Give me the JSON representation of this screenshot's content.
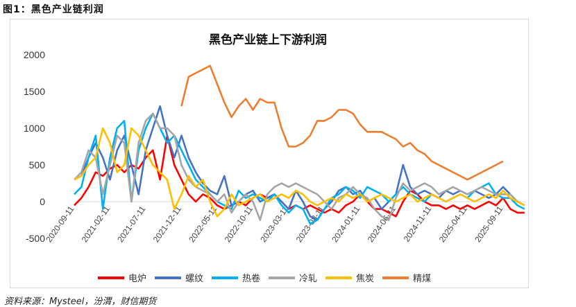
{
  "figure_title": "图1：黑色产业链利润",
  "source": "资料来源：Mysteel，汾渭，财信期货",
  "chart_data": {
    "type": "line",
    "title": "黑色产业链上下游利润",
    "xlabel": "",
    "ylabel": "",
    "ylim": [
      -500,
      2000
    ],
    "yticks": [
      2000,
      1500,
      1000,
      500,
      0,
      -500
    ],
    "x_tick_labels": [
      "2020-09-11",
      "2021-02-11",
      "2021-07-11",
      "2021-12-11",
      "2022-05-11",
      "2022-10-11",
      "2023-03-11",
      "2023-08-11",
      "2024-01-11",
      "2024-06-11",
      "2024-11-11",
      "2025-04-11",
      "2025-09-11"
    ],
    "x_unit": "months since 2020-09, monthly approximations",
    "legend_position": "bottom",
    "grid": false,
    "series": [
      {
        "name": "电炉",
        "color": "#ff0000",
        "values": [
          -50,
          50,
          200,
          400,
          350,
          450,
          500,
          400,
          500,
          450,
          600,
          700,
          300,
          900,
          500,
          300,
          100,
          0,
          100,
          50,
          -50,
          -100,
          -50,
          0,
          -50,
          50,
          100,
          50,
          100,
          0,
          -100,
          -50,
          -100,
          -50,
          -100,
          -150,
          -100,
          -150,
          -50,
          0,
          100,
          0,
          -100,
          -100,
          -150,
          -200,
          0,
          150,
          100,
          0,
          -50,
          -50,
          -100,
          -50,
          -100,
          -50,
          -100,
          -50,
          0,
          -50,
          50,
          -100,
          -150,
          -150
        ]
      },
      {
        "name": "螺纹",
        "color": "#4472c4",
        "values": [
          300,
          350,
          600,
          800,
          600,
          300,
          700,
          900,
          500,
          100,
          700,
          1000,
          1300,
          900,
          600,
          900,
          600,
          400,
          250,
          150,
          100,
          350,
          -50,
          0,
          100,
          150,
          0,
          50,
          100,
          0,
          -100,
          150,
          0,
          -200,
          -250,
          -100,
          0,
          150,
          200,
          100,
          150,
          0,
          50,
          -100,
          0,
          100,
          500,
          200,
          100,
          150,
          100,
          50,
          150,
          100,
          150,
          100,
          150,
          100,
          50,
          100,
          200,
          100,
          0,
          -50
        ]
      },
      {
        "name": "热卷",
        "color": "#00b0f0",
        "values": [
          100,
          200,
          600,
          900,
          -100,
          600,
          1000,
          1100,
          0,
          700,
          1000,
          1200,
          1000,
          800,
          900,
          700,
          500,
          300,
          200,
          100,
          0,
          -50,
          -100,
          150,
          50,
          100,
          50,
          0,
          100,
          -50,
          -150,
          -50,
          -100,
          -300,
          -250,
          -100,
          50,
          100,
          200,
          150,
          50,
          200,
          150,
          100,
          0,
          100,
          200,
          100,
          50,
          0,
          100,
          50,
          0,
          50,
          100,
          50,
          150,
          200,
          250,
          100,
          50,
          50,
          -50,
          -100
        ]
      },
      {
        "name": "冷轧",
        "color": "#a5a5a5",
        "values": [
          300,
          400,
          700,
          600,
          100,
          500,
          900,
          800,
          0,
          800,
          1100,
          1200,
          1000,
          1000,
          900,
          500,
          300,
          200,
          150,
          100,
          0,
          100,
          -150,
          0,
          100,
          0,
          -250,
          100,
          200,
          250,
          200,
          250,
          200,
          150,
          100,
          0,
          -100,
          50,
          100,
          200,
          100,
          50,
          -100,
          -200,
          -250,
          50,
          250,
          150,
          200,
          250,
          200,
          100,
          150,
          200,
          150,
          100,
          150,
          200,
          150,
          100,
          100,
          100,
          0,
          -50
        ]
      },
      {
        "name": "焦炭",
        "color": "#ffc000",
        "values": [
          300,
          350,
          500,
          600,
          1000,
          800,
          400,
          500,
          1000,
          900,
          700,
          500,
          400,
          300,
          -100,
          100,
          350,
          200,
          300,
          0,
          -200,
          -100,
          100,
          -50,
          0,
          50,
          100,
          0,
          50,
          100,
          50,
          150,
          100,
          0,
          -50,
          0,
          50,
          0,
          100,
          50,
          100,
          0,
          50,
          100,
          50,
          0,
          50,
          100,
          0,
          50,
          100,
          50,
          0,
          50,
          100,
          50,
          0,
          50,
          100,
          50,
          150,
          50,
          0,
          -50
        ]
      },
      {
        "name": "精煤",
        "color": "#ed7d31",
        "values": [
          null,
          null,
          null,
          null,
          null,
          null,
          null,
          null,
          null,
          null,
          null,
          null,
          null,
          null,
          null,
          1300,
          1700,
          1750,
          1800,
          1850,
          1600,
          1350,
          1150,
          1300,
          1400,
          1250,
          1400,
          1350,
          1350,
          1000,
          750,
          750,
          800,
          900,
          1100,
          1100,
          1150,
          1250,
          1250,
          1200,
          1050,
          950,
          950,
          950,
          900,
          850,
          750,
          800,
          700,
          650,
          550,
          500,
          450,
          400,
          350,
          300,
          350,
          400,
          450,
          500,
          550,
          null,
          null,
          null
        ]
      }
    ]
  }
}
